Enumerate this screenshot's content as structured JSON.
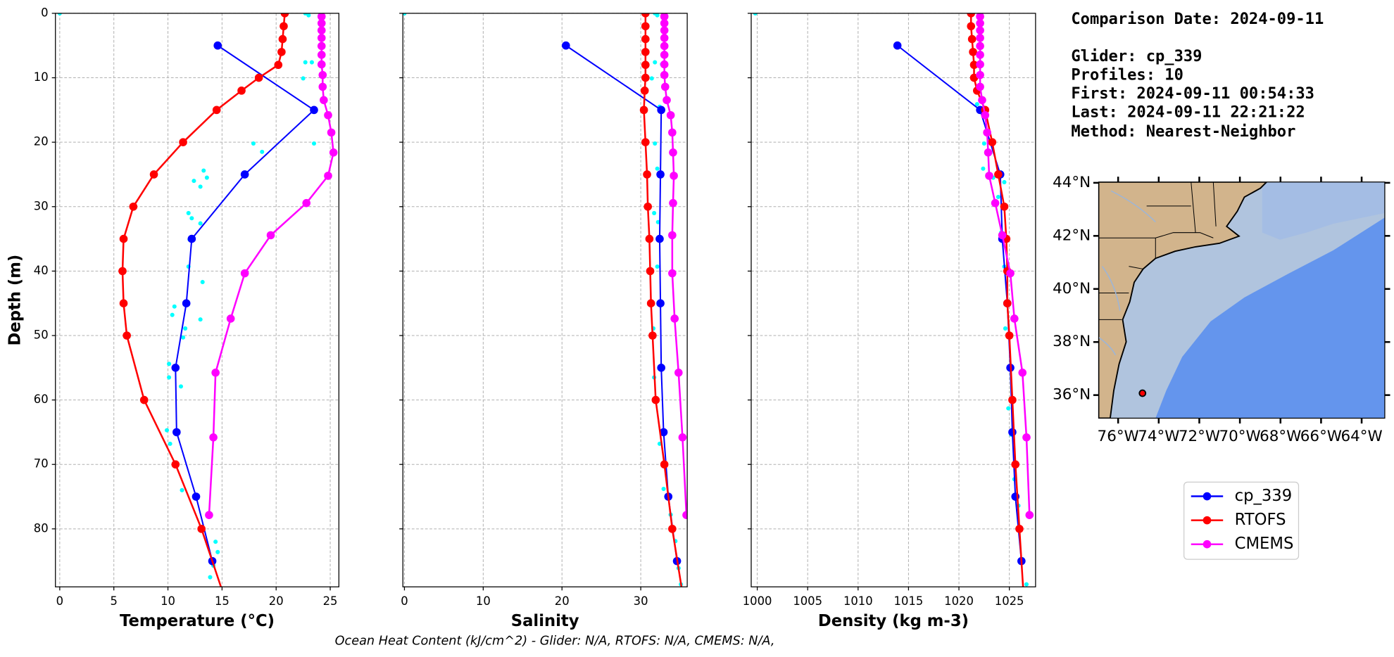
{
  "chart_data": [
    {
      "type": "line",
      "xlabel": "Temperature (°C)",
      "ylabel": "Depth (m)",
      "xlim": [
        -0.4,
        25.8
      ],
      "xticks": [
        0,
        5,
        10,
        15,
        20,
        25
      ],
      "ylim": [
        0,
        89
      ],
      "y_inverted": true,
      "yticks": [
        0,
        10,
        20,
        30,
        40,
        50,
        60,
        70,
        80
      ],
      "grid": true,
      "raw": {
        "color": "#00ffff",
        "y": [
          0,
          0,
          0.3,
          7.6,
          7.6,
          10.1,
          14.9,
          20.2,
          21.5,
          20.2,
          24.4,
          25.5,
          26.0,
          26.9,
          31.0,
          31.8,
          32.6,
          35.1,
          39.3,
          41.7,
          45.5,
          46.8,
          47.5,
          48.9,
          50.3,
          54.4,
          56.5,
          57.9,
          64.7,
          66.8,
          74.0,
          82.0,
          83.6,
          85.7,
          87.5
        ],
        "x": [
          0.0,
          22.7,
          23.0,
          22.7,
          23.3,
          22.5,
          23.4,
          17.9,
          18.7,
          23.5,
          13.3,
          13.6,
          12.4,
          13.0,
          11.9,
          12.2,
          13.0,
          12.0,
          11.9,
          13.2,
          10.6,
          10.4,
          13.0,
          11.6,
          11.4,
          10.1,
          10.1,
          11.2,
          9.9,
          10.2,
          11.3,
          14.4,
          14.6,
          14.2,
          13.9
        ]
      },
      "series": [
        {
          "name": "cp_339",
          "color": "#0000ff",
          "y": [
            5,
            15,
            25,
            35,
            45,
            55,
            65,
            75,
            85
          ],
          "x": [
            14.6,
            23.5,
            17.1,
            12.2,
            11.7,
            10.7,
            10.8,
            12.6,
            14.1
          ]
        },
        {
          "name": "RTOFS",
          "color": "#ff0000",
          "y": [
            0,
            2,
            4,
            6,
            8,
            10,
            12,
            15,
            20,
            25,
            30,
            35,
            40,
            45,
            50,
            60,
            70,
            80,
            90
          ],
          "x": [
            20.8,
            20.7,
            20.6,
            20.5,
            20.2,
            18.4,
            16.8,
            14.5,
            11.4,
            8.7,
            6.8,
            5.9,
            5.8,
            5.9,
            6.2,
            7.8,
            10.7,
            13.1,
            15.1
          ]
        },
        {
          "name": "CMEMS",
          "color": "#ff00ff",
          "y": [
            0.494,
            1.541,
            2.646,
            3.819,
            5.078,
            6.441,
            7.93,
            9.573,
            11.405,
            13.467,
            15.81,
            18.496,
            21.599,
            25.211,
            29.445,
            34.434,
            40.344,
            47.374,
            55.764,
            65.807,
            77.854
          ],
          "x": [
            24.2,
            24.2,
            24.2,
            24.2,
            24.2,
            24.2,
            24.2,
            24.3,
            24.3,
            24.4,
            24.8,
            25.1,
            25.3,
            24.8,
            22.8,
            19.5,
            17.1,
            15.8,
            14.4,
            14.2,
            13.8
          ]
        }
      ]
    },
    {
      "type": "line",
      "xlabel": "Salinity",
      "xlim": [
        -0.2,
        35.9
      ],
      "xticks": [
        0,
        10,
        20,
        30
      ],
      "grid": true,
      "raw": {
        "color": "#00ffff",
        "y": [
          0,
          0,
          0.3,
          7.6,
          7.9,
          10.1,
          14.5,
          20.2,
          24.1,
          24.8,
          31.0,
          32.4,
          39.3,
          44.8,
          48.9,
          56.5,
          66.8,
          73.8,
          77.8,
          81.9,
          86.1,
          88.6
        ],
        "x": [
          0.0,
          31.8,
          32.1,
          31.8,
          32.7,
          31.4,
          32.4,
          31.8,
          32.1,
          32.7,
          31.7,
          32.2,
          32.1,
          32.4,
          31.6,
          31.7,
          32.4,
          32.9,
          33.8,
          34.4,
          34.8,
          35.1
        ]
      },
      "series": [
        {
          "color": "#0000ff",
          "y": [
            5,
            15,
            25,
            35,
            45,
            55,
            65,
            75,
            85
          ],
          "x": [
            20.5,
            32.6,
            32.5,
            32.4,
            32.5,
            32.6,
            32.9,
            33.5,
            34.6
          ]
        },
        {
          "color": "#ff0000",
          "y": [
            0,
            2,
            4,
            6,
            8,
            10,
            12,
            15,
            20,
            25,
            30,
            35,
            40,
            45,
            50,
            60,
            70,
            80,
            90
          ],
          "x": [
            30.6,
            30.6,
            30.6,
            30.6,
            30.6,
            30.6,
            30.5,
            30.4,
            30.6,
            30.8,
            30.9,
            31.1,
            31.2,
            31.3,
            31.5,
            31.9,
            33.0,
            34.0,
            35.3
          ]
        },
        {
          "color": "#ff00ff",
          "y": [
            0.494,
            1.541,
            2.646,
            3.819,
            5.078,
            6.441,
            7.93,
            9.573,
            11.405,
            13.467,
            15.81,
            18.496,
            21.599,
            25.211,
            29.445,
            34.434,
            40.344,
            47.374,
            55.764,
            65.807,
            77.854
          ],
          "x": [
            33.0,
            33.0,
            33.0,
            33.0,
            33.0,
            33.0,
            33.0,
            33.0,
            33.1,
            33.3,
            33.8,
            34.0,
            34.1,
            34.2,
            34.1,
            34.0,
            34.0,
            34.3,
            34.8,
            35.3,
            35.8
          ]
        }
      ]
    },
    {
      "type": "line",
      "xlabel": "Density (kg m-3)",
      "xlim": [
        999.4,
        1027.6
      ],
      "xticks": [
        1000,
        1005,
        1010,
        1015,
        1020,
        1025
      ],
      "grid": true,
      "raw": {
        "color": "#00ffff",
        "y": [
          0,
          14.1,
          15.0,
          20.2,
          24.1,
          25.5,
          26.2,
          28.5,
          34.0,
          39.3,
          48.9,
          61.3,
          65.4,
          72.3,
          76.4,
          84.7,
          88.6
        ],
        "x": [
          999.8,
          1021.8,
          1022.1,
          1022.5,
          1022.4,
          1023.4,
          1024.5,
          1023.9,
          1024.2,
          1024.5,
          1024.6,
          1024.9,
          1025.2,
          1025.5,
          1025.9,
          1026.3,
          1026.7
        ]
      },
      "series": [
        {
          "color": "#0000ff",
          "y": [
            5,
            15,
            25,
            35,
            45,
            55,
            65,
            75,
            85
          ],
          "x": [
            1013.9,
            1022.1,
            1024.1,
            1024.3,
            1024.8,
            1025.1,
            1025.3,
            1025.6,
            1026.2
          ]
        },
        {
          "color": "#ff0000",
          "y": [
            0,
            2,
            4,
            6,
            8,
            10,
            12,
            15,
            20,
            25,
            30,
            35,
            40,
            45,
            50,
            60,
            70,
            80,
            90
          ],
          "x": [
            1021.2,
            1021.2,
            1021.3,
            1021.4,
            1021.5,
            1021.5,
            1021.8,
            1022.6,
            1023.3,
            1023.9,
            1024.5,
            1024.7,
            1024.8,
            1024.8,
            1025.0,
            1025.3,
            1025.6,
            1026.0,
            1026.4
          ]
        },
        {
          "color": "#ff00ff",
          "y": [
            0.494,
            1.541,
            2.646,
            3.819,
            5.078,
            6.441,
            7.93,
            9.573,
            11.405,
            13.467,
            15.81,
            18.496,
            21.599,
            25.211,
            29.445,
            34.434,
            40.344,
            47.374,
            55.764,
            65.807,
            77.854
          ],
          "x": [
            1022.1,
            1022.1,
            1022.1,
            1022.1,
            1022.1,
            1022.1,
            1022.1,
            1022.1,
            1022.1,
            1022.3,
            1022.6,
            1022.8,
            1022.9,
            1023.0,
            1023.6,
            1024.3,
            1025.1,
            1025.5,
            1026.3,
            1026.7,
            1027.0
          ]
        }
      ]
    }
  ],
  "info": [
    "Comparison Date: 2024-09-11",
    "Glider: cp_339",
    "Profiles: 10",
    "First: 2024-09-11 00:54:33",
    "Last: 2024-09-11 22:21:22",
    "Method: Nearest-Neighbor"
  ],
  "map": {
    "lonlim": [
      -76.96,
      -62.86
    ],
    "latlim": [
      35.13,
      44.03
    ],
    "lonticks": [
      {
        "value": -76,
        "label": "76°W"
      },
      {
        "value": -74,
        "label": "74°W"
      },
      {
        "value": -72,
        "label": "72°W"
      },
      {
        "value": -70,
        "label": "70°W"
      },
      {
        "value": -68,
        "label": "68°W"
      },
      {
        "value": -66,
        "label": "66°W"
      },
      {
        "value": -64,
        "label": "64°W"
      }
    ],
    "latticks": [
      {
        "value": 36,
        "label": "36°N"
      },
      {
        "value": 38,
        "label": "38°N"
      },
      {
        "value": 40,
        "label": "40°N"
      },
      {
        "value": 42,
        "label": "42°N"
      },
      {
        "value": 44,
        "label": "44°N"
      }
    ],
    "marker": {
      "lon": -74.8,
      "lat": 36.07,
      "color": "#ff0000"
    }
  },
  "caption": "Ocean Heat Content (kJ/cm^2) - Glider: N/A,  RTOFS: N/A,  CMEMS: N/A,"
}
